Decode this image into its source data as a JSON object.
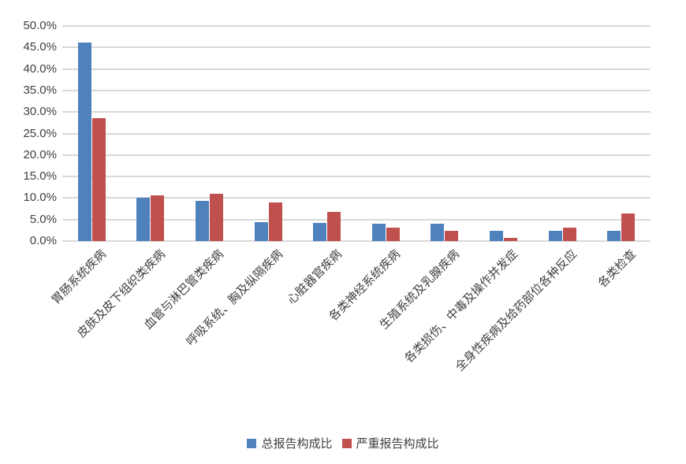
{
  "chart_data": {
    "type": "bar",
    "title": "",
    "xlabel": "",
    "ylabel": "",
    "categories": [
      "胃肠系统疾病",
      "皮肤及皮下组织类疾病",
      "血管与淋巴管类疾病",
      "呼吸系统、胸及纵隔疾病",
      "心脏器官疾病",
      "各类神经系统疾病",
      "生殖系统及乳腺疾病",
      "各类损伤、中毒及操作并发症",
      "全身性疾病及给药部位各种反应",
      "各类检查"
    ],
    "series": [
      {
        "name": "总报告构成比",
        "color": "#4F81BD",
        "values": [
          46.1,
          10.0,
          9.4,
          4.4,
          4.2,
          4.1,
          4.0,
          2.3,
          2.3,
          2.4
        ]
      },
      {
        "name": "严重报告构成比",
        "color": "#C0504D",
        "values": [
          28.6,
          10.6,
          10.9,
          8.9,
          6.8,
          3.1,
          2.3,
          0.8,
          3.2,
          6.4
        ]
      }
    ],
    "ylim": [
      0,
      50
    ],
    "ytick_step": 5,
    "ytick_labels": [
      "0.0%",
      "5.0%",
      "10.0%",
      "15.0%",
      "20.0%",
      "25.0%",
      "30.0%",
      "35.0%",
      "40.0%",
      "45.0%",
      "50.0%"
    ],
    "grid": true,
    "legend_position": "bottom"
  },
  "style": {
    "gridline_color": "#D9D9D9",
    "axis_text_color": "#404040",
    "background": "#FFFFFF"
  }
}
